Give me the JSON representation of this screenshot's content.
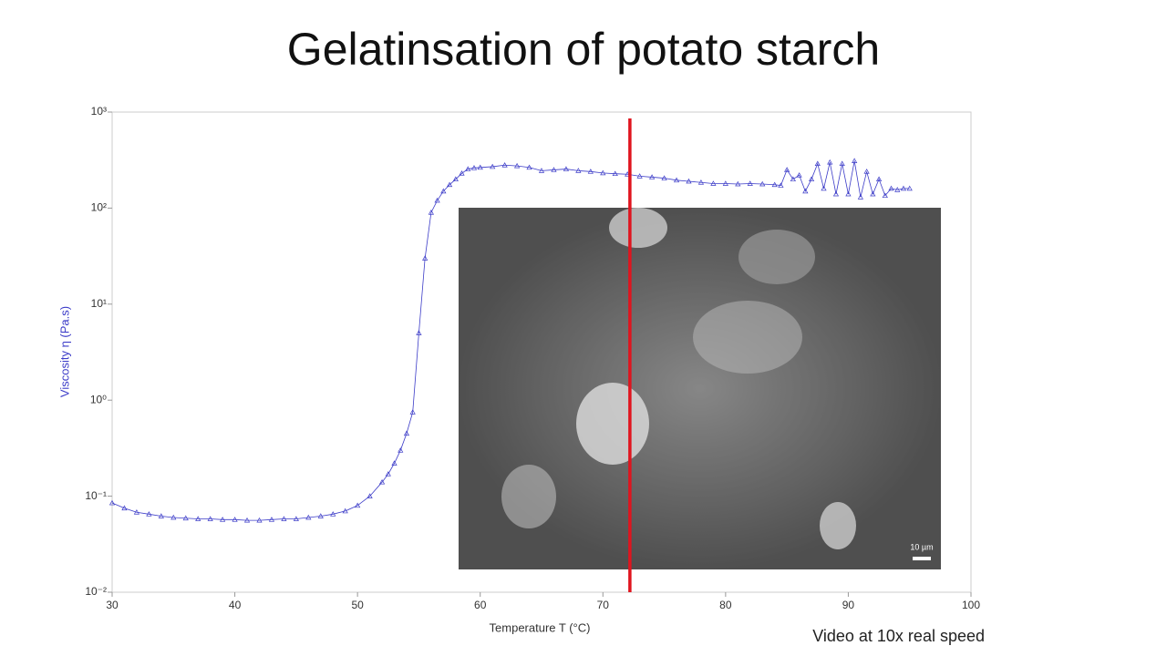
{
  "chart_data": {
    "type": "line",
    "title": "Gelatinsation of potato starch",
    "y_label": "Viscosity η (Pa.s)",
    "x_label": "Temperature T (°C)",
    "caption": "Video at 10x real speed",
    "inset_scale_label": "10 µm",
    "log_y": true,
    "cursor_x": 72.2,
    "cursor_color": "#e0141e",
    "xlim": [
      30,
      100
    ],
    "xticks": [
      30,
      40,
      50,
      60,
      70,
      80,
      90,
      100
    ],
    "ylim": [
      0.01,
      1000
    ],
    "yticks": [
      {
        "value": 0.01,
        "label": "10⁻²"
      },
      {
        "value": 0.1,
        "label": "10⁻¹"
      },
      {
        "value": 1,
        "label": "10⁰"
      },
      {
        "value": 10,
        "label": "10¹"
      },
      {
        "value": 100,
        "label": "10²"
      },
      {
        "value": 1000,
        "label": "10³"
      }
    ],
    "series": [
      {
        "color": "#3c3cc8",
        "x": [
          30,
          31,
          32,
          33,
          34,
          35,
          36,
          37,
          38,
          39,
          40,
          41,
          42,
          43,
          44,
          45,
          46,
          47,
          48,
          49,
          50,
          51,
          52,
          52.5,
          53,
          53.5,
          54,
          54.5,
          55,
          55.5,
          56,
          56.5,
          57,
          57.5,
          58,
          58.5,
          59,
          59.5,
          60,
          61,
          62,
          63,
          64,
          65,
          66,
          67,
          68,
          69,
          70,
          71,
          72,
          73,
          74,
          75,
          76,
          77,
          78,
          79,
          80,
          81,
          82,
          83,
          84,
          84.5,
          85,
          85.5,
          86,
          86.5,
          87,
          87.5,
          88,
          88.5,
          89,
          89.5,
          90,
          90.5,
          91,
          91.5,
          92,
          92.5,
          93,
          93.5,
          94,
          94.5,
          95
        ],
        "values": [
          0.085,
          0.075,
          0.068,
          0.065,
          0.062,
          0.06,
          0.059,
          0.058,
          0.058,
          0.057,
          0.057,
          0.056,
          0.056,
          0.057,
          0.058,
          0.058,
          0.06,
          0.062,
          0.065,
          0.07,
          0.08,
          0.1,
          0.14,
          0.17,
          0.22,
          0.3,
          0.45,
          0.75,
          5,
          30,
          90,
          120,
          150,
          175,
          200,
          230,
          255,
          262,
          265,
          270,
          280,
          275,
          265,
          245,
          250,
          255,
          245,
          240,
          232,
          228,
          225,
          215,
          210,
          205,
          195,
          190,
          185,
          180,
          180,
          178,
          180,
          178,
          175,
          172,
          250,
          200,
          220,
          150,
          200,
          290,
          160,
          300,
          140,
          290,
          140,
          310,
          130,
          240,
          140,
          200,
          135,
          160,
          155,
          160,
          160
        ]
      }
    ]
  }
}
